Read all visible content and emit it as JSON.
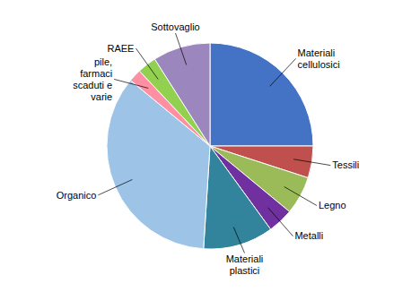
{
  "chart_data": {
    "type": "pie",
    "categories": [
      "Materiali\ncellulosici",
      "Tessili",
      "Legno",
      "Metalli",
      "Materiali\nplastici",
      "Organico",
      "pile,\nfarmaci\nscaduti e\nvarie",
      "RAEE",
      "Sottovaglio"
    ],
    "values": [
      25,
      5,
      6,
      4,
      11,
      35,
      2,
      3,
      9
    ],
    "colors": [
      "#4472C4",
      "#C0504D",
      "#9BBB59",
      "#7030A0",
      "#31849B",
      "#9DC3E6",
      "#FF8FA3",
      "#92D050",
      "#9B86BD"
    ]
  }
}
